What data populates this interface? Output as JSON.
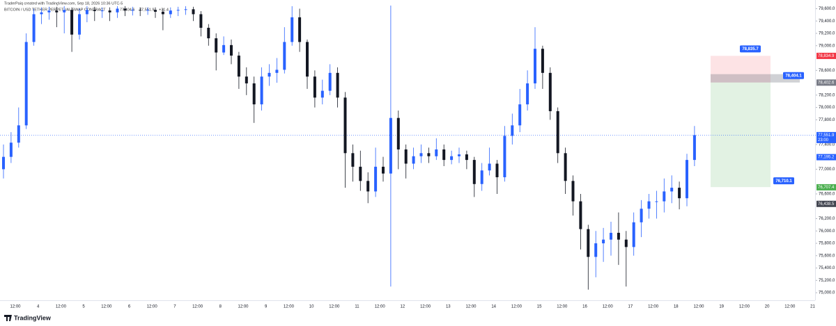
{
  "chart_data": {
    "type": "candlestick",
    "credit": "TraderPaiq created with TradingView.com, Sep 18, 2026 10:36 UTC-5",
    "symbol": "BITCOIN / USD TETHER PERPETUAL SWAP CONTRACT",
    "header_values": [
      "77,404.6",
      "77,551.9",
      "+31.4"
    ],
    "brand": "TradingView",
    "up_color": "#2962ff",
    "down_color": "#131722",
    "ylim": [
      74900,
      79650
    ],
    "yticks": [
      {
        "value": 75000,
        "label": "75,000.0"
      },
      {
        "value": 75200,
        "label": "75,200.0"
      },
      {
        "value": 75400,
        "label": "75,400.0"
      },
      {
        "value": 75600,
        "label": "75,600.0"
      },
      {
        "value": 75800,
        "label": "75,800.0"
      },
      {
        "value": 76000,
        "label": "76,000.0"
      },
      {
        "value": 76200,
        "label": "76,200.0"
      },
      {
        "value": 76600,
        "label": "76,600.0"
      },
      {
        "value": 77000,
        "label": "77,000.0"
      },
      {
        "value": 77400,
        "label": "77,400.0"
      },
      {
        "value": 77800,
        "label": "77,800.0"
      },
      {
        "value": 78000,
        "label": "78,000.0"
      },
      {
        "value": 78200,
        "label": "78,200.0"
      },
      {
        "value": 78600,
        "label": "78,600.0"
      },
      {
        "value": 79000,
        "label": "79,000.0"
      },
      {
        "value": 79200,
        "label": "79,200.0"
      },
      {
        "value": 79400,
        "label": "79,400.0"
      },
      {
        "value": 79600,
        "label": "79,600.0"
      }
    ],
    "xtick_labels": [
      "12:00",
      "4",
      "12:00",
      "5",
      "12:00",
      "6",
      "12:00",
      "7",
      "12:00",
      "8",
      "12:00",
      "9",
      "12:00",
      "10",
      "12:00",
      "11",
      "12:00",
      "12",
      "12:00",
      "13",
      "12:00",
      "14",
      "12:00",
      "15",
      "12:00",
      "16",
      "12:00",
      "17",
      "12:00",
      "18",
      "12:00",
      "19",
      "12:00",
      "20",
      "12:00",
      "21"
    ],
    "open": [
      77000,
      77200,
      77430,
      77710,
      79060,
      79510,
      79540,
      79570,
      79540,
      79580,
      79180,
      79510,
      79580,
      79560,
      79570,
      79540,
      79600,
      79570,
      79580,
      79570,
      79580,
      79550,
      79510,
      79570,
      79580,
      79590,
      79510,
      79290,
      79120,
      78890,
      79010,
      78840,
      78500,
      78390,
      78050,
      78500,
      78560,
      78610,
      79060,
      79460,
      79060,
      78500,
      78160,
      78270,
      78560,
      78160,
      77260,
      77040,
      76810,
      76640,
      77040,
      76930,
      77830,
      77320,
      77090,
      77210,
      77260,
      77210,
      77320,
      77150,
      77210,
      77240,
      77150,
      76760,
      76980,
      77090,
      76870,
      77540,
      77710,
      78050,
      78390,
      78950,
      78560,
      77940,
      77260,
      76810,
      76480,
      76030,
      75580,
      75800,
      75860,
      75970,
      75860,
      75740,
      76140,
      76360,
      76480,
      76480,
      76640,
      76700,
      76530,
      77150
    ],
    "high": [
      77400,
      77600,
      78000,
      79200,
      79600,
      79620,
      79630,
      79630,
      79640,
      79620,
      79600,
      79640,
      79630,
      79620,
      79620,
      79640,
      79640,
      79630,
      79620,
      79620,
      79620,
      79600,
      79620,
      79630,
      79640,
      79630,
      79560,
      79350,
      79200,
      79150,
      79100,
      78900,
      78650,
      78500,
      78650,
      78700,
      78800,
      79300,
      79640,
      79600,
      79100,
      78600,
      78450,
      78700,
      78650,
      78250,
      77400,
      77300,
      76950,
      77350,
      77200,
      79650,
      77950,
      77400,
      77350,
      77400,
      77350,
      77500,
      77400,
      77300,
      77350,
      77300,
      77200,
      77100,
      77350,
      77150,
      77700,
      77900,
      78300,
      78600,
      79300,
      79000,
      78650,
      78000,
      77350,
      76900,
      76600,
      76100,
      76000,
      76050,
      76150,
      76300,
      76000,
      76300,
      76500,
      76600,
      76650,
      76850,
      76900,
      76800,
      77250,
      77700
    ],
    "low": [
      76850,
      77100,
      77350,
      77650,
      79000,
      79350,
      79420,
      79300,
      79200,
      78900,
      79100,
      79380,
      79400,
      79450,
      79400,
      79450,
      79480,
      79490,
      79480,
      79500,
      79450,
      79250,
      79450,
      79480,
      79500,
      79400,
      79150,
      79000,
      78600,
      78850,
      78700,
      78300,
      78200,
      77750,
      77950,
      78350,
      78400,
      78550,
      79000,
      78900,
      78300,
      78000,
      78050,
      78200,
      78000,
      76700,
      76800,
      76650,
      76450,
      76550,
      76800,
      75100,
      77000,
      76850,
      77000,
      77100,
      77100,
      77150,
      77050,
      77080,
      77100,
      77000,
      76550,
      76650,
      76900,
      76600,
      76800,
      77400,
      77600,
      77950,
      78300,
      78300,
      77800,
      77100,
      76600,
      76250,
      75700,
      75050,
      75250,
      75500,
      75600,
      75450,
      75100,
      75600,
      75900,
      76200,
      76200,
      76300,
      76450,
      76350,
      76400,
      77050
    ],
    "close": [
      77200,
      77430,
      77710,
      79060,
      79510,
      79540,
      79570,
      79540,
      79580,
      79180,
      79510,
      79580,
      79560,
      79570,
      79540,
      79600,
      79570,
      79580,
      79570,
      79580,
      79550,
      79510,
      79570,
      79580,
      79590,
      79510,
      79290,
      79120,
      78890,
      79010,
      78840,
      78500,
      78390,
      78050,
      78500,
      78560,
      78610,
      79060,
      79460,
      79060,
      78500,
      78160,
      78270,
      78560,
      78160,
      77260,
      77040,
      76810,
      76640,
      77040,
      76930,
      77830,
      77320,
      77090,
      77210,
      77260,
      77210,
      77320,
      77150,
      77210,
      77240,
      77150,
      76760,
      76980,
      77090,
      76870,
      77540,
      77710,
      78050,
      78390,
      78950,
      78560,
      77940,
      77260,
      76810,
      76480,
      76030,
      75580,
      75800,
      75860,
      75970,
      75860,
      75740,
      76140,
      76360,
      76480,
      76480,
      76640,
      76700,
      76530,
      77150,
      77551.9
    ],
    "last_price": {
      "value": 77551.9,
      "label": "77,551.9",
      "time": "23:00",
      "color": "#2962ff"
    },
    "price_labels": [
      {
        "value": 78834.9,
        "label": "78,834.9",
        "color": "#f23645"
      },
      {
        "value": 78402.6,
        "label": "78,402.6",
        "color": "#787b86"
      },
      {
        "value": 77195.2,
        "label": "77,195.2",
        "color": "#2962ff"
      },
      {
        "value": 76707.4,
        "label": "76,707.4",
        "color": "#4caf50"
      },
      {
        "value": 76438.5,
        "label": "76,438.5",
        "color": "#434651"
      }
    ],
    "position": {
      "stop": {
        "value": 78835.7,
        "label": "78,835.7"
      },
      "entry": {
        "value": 78404.1,
        "label": "78,404.1"
      },
      "target": {
        "value": 76710.1,
        "label": "76,710.1"
      },
      "label_color": "#2962ff"
    }
  }
}
